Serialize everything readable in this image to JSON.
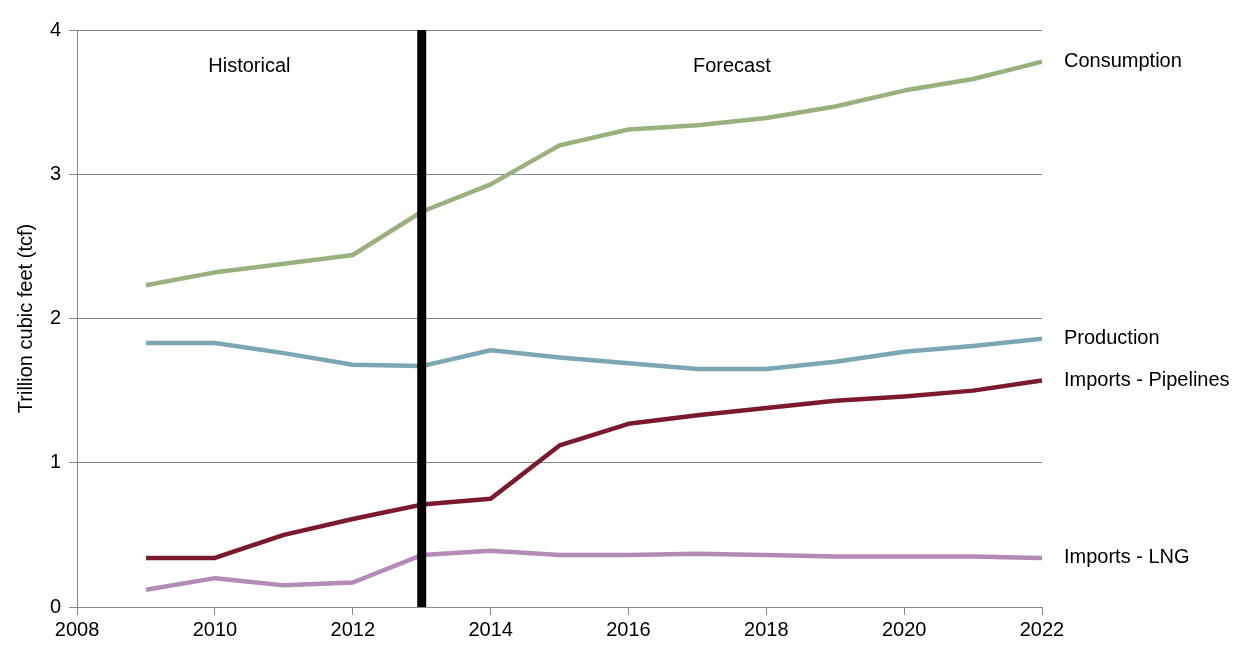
{
  "chart_data": {
    "type": "line",
    "ylabel": "Trillion cubic feet (tcf)",
    "x": [
      2009,
      2010,
      2011,
      2012,
      2013,
      2014,
      2015,
      2016,
      2017,
      2018,
      2019,
      2020,
      2021,
      2022
    ],
    "xlim": [
      2008,
      2022
    ],
    "xticks": [
      2008,
      2010,
      2012,
      2014,
      2016,
      2018,
      2020,
      2022
    ],
    "ylim": [
      0,
      4
    ],
    "yticks": [
      0,
      1,
      2,
      3,
      4
    ],
    "grid": "y",
    "legend": false,
    "marker": "none",
    "line_style": "solid",
    "series": [
      {
        "name": "Consumption",
        "color": "#9bb07f",
        "values": [
          2.23,
          2.32,
          2.38,
          2.44,
          2.74,
          2.93,
          3.2,
          3.31,
          3.34,
          3.39,
          3.47,
          3.58,
          3.66,
          3.78
        ]
      },
      {
        "name": "Production",
        "color": "#7ba7b5",
        "values": [
          1.83,
          1.83,
          1.76,
          1.68,
          1.67,
          1.78,
          1.73,
          1.69,
          1.65,
          1.65,
          1.7,
          1.77,
          1.81,
          1.86
        ]
      },
      {
        "name": "Imports - Pipelines",
        "color": "#7b1a2e",
        "values": [
          0.34,
          0.34,
          0.5,
          0.61,
          0.71,
          0.75,
          1.12,
          1.27,
          1.33,
          1.38,
          1.43,
          1.46,
          1.5,
          1.57
        ]
      },
      {
        "name": "Imports - LNG",
        "color": "#b48ab9",
        "values": [
          0.12,
          0.2,
          0.15,
          0.17,
          0.36,
          0.39,
          0.36,
          0.36,
          0.37,
          0.36,
          0.35,
          0.35,
          0.35,
          0.34
        ]
      }
    ],
    "ref_lines": [
      {
        "axis": "x",
        "value": 2013,
        "color": "#000000"
      }
    ],
    "annotations": [
      "Historical",
      "Forecast"
    ]
  }
}
